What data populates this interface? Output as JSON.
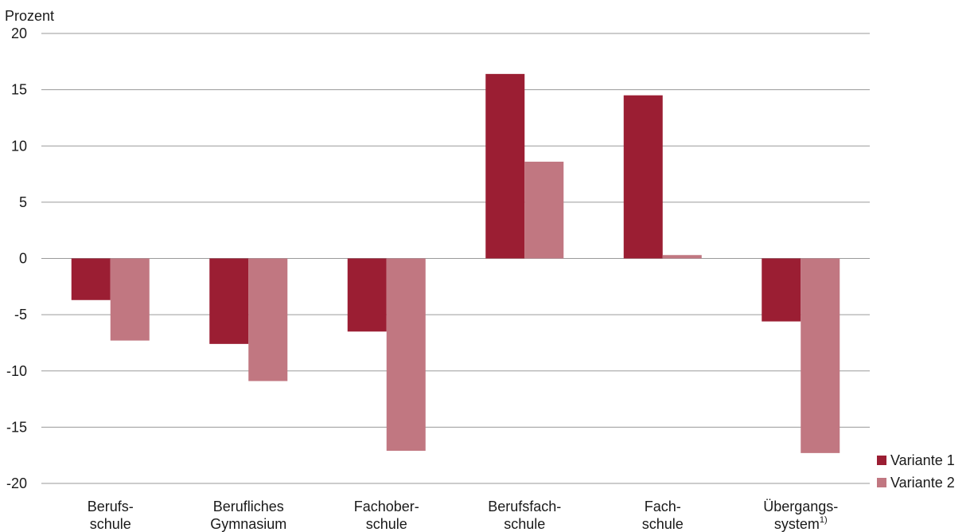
{
  "chart_data": {
    "type": "bar",
    "ylabel": "Prozent",
    "ylim": [
      -20,
      20
    ],
    "yticks": [
      20,
      15,
      10,
      5,
      0,
      -5,
      -10,
      -15,
      -20
    ],
    "grid": true,
    "legend_position": "bottom-right",
    "categories": [
      {
        "lines": [
          "Berufs-",
          "schule"
        ],
        "sup": ""
      },
      {
        "lines": [
          "Berufliches",
          "Gymnasium"
        ],
        "sup": ""
      },
      {
        "lines": [
          "Fachober-",
          "schule"
        ],
        "sup": ""
      },
      {
        "lines": [
          "Berufsfach-",
          "schule"
        ],
        "sup": ""
      },
      {
        "lines": [
          "Fach-",
          "schule"
        ],
        "sup": ""
      },
      {
        "lines": [
          "Übergangs-",
          "system"
        ],
        "sup": "1)"
      }
    ],
    "series": [
      {
        "name": "Variante 1",
        "color": "#9b1e33",
        "values": [
          -3.7,
          -7.6,
          -6.5,
          16.4,
          14.5,
          -5.6
        ]
      },
      {
        "name": "Variante 2",
        "color": "#c17781",
        "values": [
          -7.3,
          -10.9,
          -17.1,
          8.6,
          0.3,
          -17.3
        ]
      }
    ]
  }
}
